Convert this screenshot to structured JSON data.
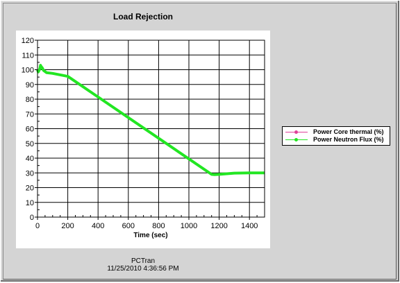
{
  "footer": {
    "app_name": "PCTran",
    "timestamp": "11/25/2010 4:36:56 PM"
  },
  "chart_data": {
    "type": "line",
    "title": "Load Rejection",
    "xlabel": "Time (sec)",
    "ylabel": "",
    "xlim": [
      0,
      1500
    ],
    "ylim": [
      0,
      120
    ],
    "xticks": [
      0,
      200,
      400,
      600,
      800,
      1000,
      1200,
      1400
    ],
    "yticks": [
      0,
      10,
      20,
      30,
      40,
      50,
      60,
      70,
      80,
      90,
      100,
      110,
      120
    ],
    "grid": true,
    "legend_position": "right",
    "series": [
      {
        "name": "Power Core thermal (%)",
        "color": "#e0409a",
        "x": [
          0,
          5,
          10,
          15,
          20,
          25,
          30,
          40,
          60,
          100,
          150,
          200,
          1150,
          1170,
          1200,
          1300,
          1400,
          1500
        ],
        "y": [
          100,
          98.5,
          99.5,
          100.5,
          103,
          102,
          101.5,
          99.5,
          98,
          97.5,
          96.5,
          95.5,
          29,
          28.8,
          29,
          29.8,
          30,
          30
        ]
      },
      {
        "name": "Power Neutron Flux (%)",
        "color": "#22e622",
        "x": [
          0,
          5,
          10,
          15,
          20,
          25,
          30,
          40,
          60,
          100,
          150,
          200,
          1150,
          1170,
          1200,
          1300,
          1400,
          1500
        ],
        "y": [
          100,
          98.5,
          99.5,
          100.5,
          103,
          102,
          101.5,
          99.5,
          98,
          97.5,
          96.5,
          95.5,
          29,
          28.8,
          29,
          29.8,
          30,
          30
        ]
      }
    ]
  }
}
